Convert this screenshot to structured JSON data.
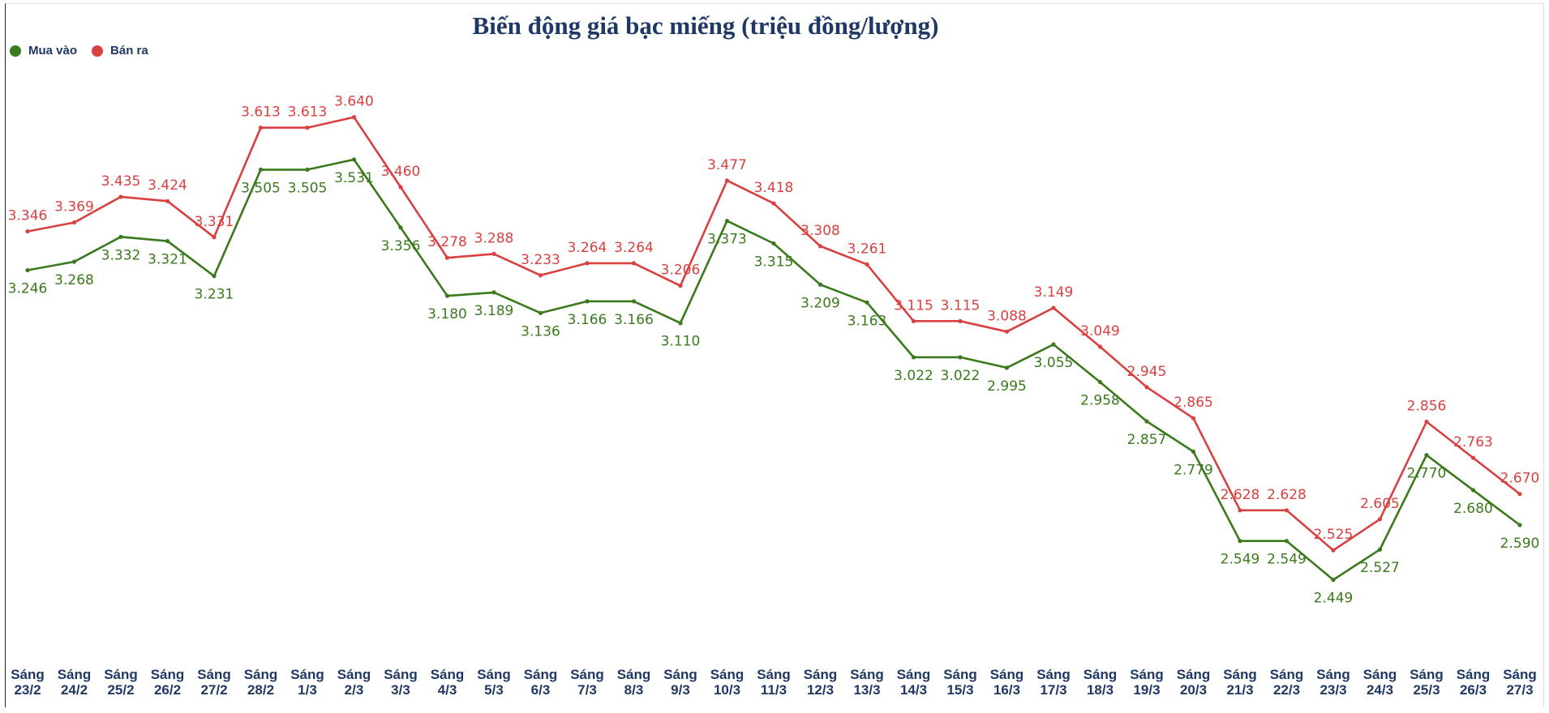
{
  "chart_data": {
    "type": "line",
    "title": "Biến động giá bạc miếng (triệu đồng/lượng)",
    "categories": [
      "Sáng\n23/2",
      "Sáng\n24/2",
      "Sáng\n25/2",
      "Sáng\n26/2",
      "Sáng\n27/2",
      "Sáng\n28/2",
      "Sáng\n1/3",
      "Sáng\n2/3",
      "Sáng\n3/3",
      "Sáng\n4/3",
      "Sáng\n5/3",
      "Sáng\n6/3",
      "Sáng\n7/3",
      "Sáng\n8/3",
      "Sáng\n9/3",
      "Sáng\n10/3",
      "Sáng\n11/3",
      "Sáng\n12/3",
      "Sáng\n13/3",
      "Sáng\n14/3",
      "Sáng\n15/3",
      "Sáng\n16/3",
      "Sáng\n17/3",
      "Sáng\n18/3",
      "Sáng\n19/3",
      "Sáng\n20/3",
      "Sáng\n21/3",
      "Sáng\n22/3",
      "Sáng\n23/3",
      "Sáng\n24/3",
      "Sáng\n25/3",
      "Sáng\n26/3",
      "Sáng\n27/3"
    ],
    "series": [
      {
        "name": "Mua vào",
        "color": "#3a7a1c",
        "values": [
          3.246,
          3.268,
          3.332,
          3.321,
          3.231,
          3.505,
          3.505,
          3.531,
          3.356,
          3.18,
          3.189,
          3.136,
          3.166,
          3.166,
          3.11,
          3.373,
          3.315,
          3.209,
          3.163,
          3.022,
          3.022,
          2.995,
          3.055,
          2.958,
          2.857,
          2.779,
          2.549,
          2.549,
          2.449,
          2.527,
          2.77,
          2.68,
          2.59
        ],
        "labels": [
          "3.246",
          "3.268",
          "3.332",
          "3.321",
          "3.231",
          "3.505",
          "3.505",
          "3.531",
          "3.356",
          "3.180",
          "3.189",
          "3.136",
          "3.166",
          "3.166",
          "3.110",
          "3.373",
          "3.315",
          "3.209",
          "3.163",
          "3.022",
          "3.022",
          "2.995",
          "3.055",
          "2.958",
          "2.857",
          "2.779",
          "2.549",
          "2.549",
          "2.449",
          "2.527",
          "2.770",
          "2.680",
          "2.590"
        ]
      },
      {
        "name": "Bán ra",
        "color": "#d94040",
        "values": [
          3.346,
          3.369,
          3.435,
          3.424,
          3.331,
          3.613,
          3.613,
          3.64,
          3.46,
          3.278,
          3.288,
          3.233,
          3.264,
          3.264,
          3.206,
          3.477,
          3.418,
          3.308,
          3.261,
          3.115,
          3.115,
          3.088,
          3.149,
          3.049,
          2.945,
          2.865,
          2.628,
          2.628,
          2.525,
          2.605,
          2.856,
          2.763,
          2.67
        ],
        "labels": [
          "3.346",
          "3.369",
          "3.435",
          "3.424",
          "3.331",
          "3.613",
          "3.613",
          "3.640",
          "3.460",
          "3.278",
          "3.288",
          "3.233",
          "3.264",
          "3.264",
          "3.206",
          "3.477",
          "3.418",
          "3.308",
          "3.261",
          "3.115",
          "3.115",
          "3.088",
          "3.149",
          "3.049",
          "2.945",
          "2.865",
          "2.628",
          "2.628",
          "2.525",
          "2.605",
          "2.856",
          "2.763",
          "2.670"
        ]
      }
    ],
    "ylim": [
      2.2,
      3.9
    ],
    "grid": false,
    "legend_position": "top-left"
  }
}
